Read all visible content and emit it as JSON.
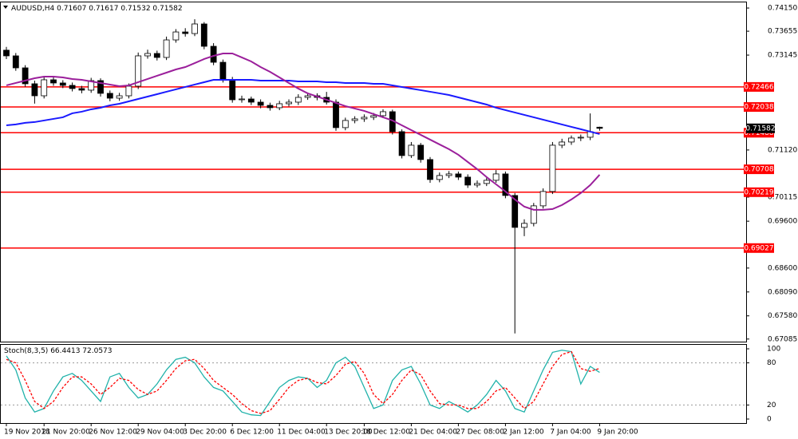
{
  "chart_data": [
    {
      "type": "candlestick",
      "title": "AUDUSD,H4",
      "categories": [
        "19 Nov 2018",
        null,
        null,
        null,
        "21 Nov 20:00",
        null,
        null,
        null,
        null,
        "26 Nov 12:00",
        null,
        null,
        null,
        null,
        "29 Nov 04:00",
        null,
        null,
        null,
        null,
        "3 Dec 20:00",
        null,
        null,
        null,
        null,
        "6 Dec 12:00",
        null,
        null,
        null,
        null,
        "11 Dec 04:00",
        null,
        null,
        null,
        null,
        "13 Dec 20:00",
        null,
        null,
        null,
        "18 Dec 12:00",
        null,
        null,
        null,
        null,
        "21 Dec 04:00",
        null,
        null,
        null,
        null,
        "27 Dec 08:00",
        null,
        null,
        null,
        null,
        "2 Jan 12:00",
        null,
        null,
        null,
        null,
        "7 Jan 04:00",
        null,
        null,
        null,
        null,
        "9 Jan 20:00"
      ],
      "open": [
        0.7325,
        0.73129,
        0.72873,
        0.72533,
        0.72277,
        0.72618,
        0.7255,
        0.72499,
        0.72431,
        0.72397,
        0.72601,
        0.72329,
        0.72226,
        0.72277,
        0.72482,
        0.73129,
        0.7318,
        0.73095,
        0.73469,
        0.73639,
        0.73605,
        0.7381,
        0.73333,
        0.72992,
        0.72618,
        0.72192,
        0.72209,
        0.72141,
        0.72073,
        0.72022,
        0.72107,
        0.72141,
        0.72243,
        0.72277,
        0.72243,
        0.72141,
        0.71597,
        0.7175,
        0.71784,
        0.71818,
        0.71852,
        0.71937,
        0.71511,
        0.71001,
        0.71222,
        0.70916,
        0.7049,
        0.70575,
        0.70609,
        0.70541,
        0.70371,
        0.70405,
        0.70473,
        0.70609,
        0.70149,
        0.69468,
        0.69554,
        0.69928,
        0.70235,
        0.71222,
        0.7129,
        0.71375,
        0.71392,
        0.71607
      ],
      "high": [
        0.7332,
        0.7319,
        0.7293,
        0.726,
        0.7268,
        0.7269,
        0.7261,
        0.7256,
        0.7249,
        0.7266,
        0.7265,
        0.7239,
        0.7234,
        0.7254,
        0.732,
        0.7326,
        0.7324,
        0.7354,
        0.737,
        0.7372,
        0.7391,
        0.7385,
        0.734,
        0.7305,
        0.7268,
        0.7228,
        0.7226,
        0.722,
        0.7213,
        0.7217,
        0.722,
        0.7231,
        0.7234,
        0.7233,
        0.7236,
        0.722,
        0.7181,
        0.7184,
        0.7188,
        0.7191,
        0.7199,
        0.7198,
        0.7156,
        0.7129,
        0.7127,
        0.7097,
        0.7064,
        0.7067,
        0.7066,
        0.706,
        0.7047,
        0.7053,
        0.7069,
        0.7066,
        0.702,
        0.6964,
        0.6999,
        0.703,
        0.7129,
        0.7136,
        0.7143,
        0.7145,
        0.719,
        0.71617
      ],
      "low": [
        0.7306,
        0.7281,
        0.7247,
        0.7211,
        0.7222,
        0.7249,
        0.7244,
        0.7237,
        0.7233,
        0.7234,
        0.7226,
        0.7216,
        0.7217,
        0.7222,
        0.7242,
        0.7307,
        0.7303,
        0.7304,
        0.7341,
        0.7354,
        0.7355,
        0.7327,
        0.7293,
        0.7256,
        0.7213,
        0.7213,
        0.7208,
        0.7201,
        0.7196,
        0.7197,
        0.7205,
        0.7208,
        0.7219,
        0.7218,
        0.7209,
        0.7153,
        0.7154,
        0.7169,
        0.7172,
        0.7176,
        0.718,
        0.7145,
        0.7094,
        0.7095,
        0.7085,
        0.7042,
        0.7043,
        0.7052,
        0.7048,
        0.7031,
        0.7032,
        0.7035,
        0.7042,
        0.7009,
        0.67204,
        0.6928,
        0.6949,
        0.6987,
        0.7018,
        0.7116,
        0.7123,
        0.7131,
        0.7133,
        0.71532
      ],
      "close": [
        0.73129,
        0.72873,
        0.72533,
        0.72277,
        0.72618,
        0.7255,
        0.72499,
        0.72431,
        0.72397,
        0.72601,
        0.72329,
        0.72226,
        0.72277,
        0.72482,
        0.73129,
        0.7318,
        0.73095,
        0.73469,
        0.73639,
        0.73605,
        0.7381,
        0.73333,
        0.72992,
        0.72618,
        0.72192,
        0.72209,
        0.72141,
        0.72073,
        0.72022,
        0.72107,
        0.72141,
        0.72243,
        0.72277,
        0.72243,
        0.72141,
        0.71597,
        0.7175,
        0.71784,
        0.71818,
        0.71852,
        0.71937,
        0.71511,
        0.71001,
        0.71222,
        0.70916,
        0.7049,
        0.70575,
        0.70609,
        0.70541,
        0.70371,
        0.70405,
        0.70473,
        0.70609,
        0.70149,
        0.69468,
        0.69554,
        0.69928,
        0.70235,
        0.71222,
        0.7129,
        0.71375,
        0.71392,
        0.71511,
        0.71582
      ],
      "up_color": "#ffffff",
      "down_color": "#000000",
      "series": [
        {
          "color": "#1a1aff",
          "values": [
            0.71647,
            0.71665,
            0.71699,
            0.71716,
            0.7175,
            0.71784,
            0.71818,
            0.71903,
            0.71937,
            0.71988,
            0.72022,
            0.72073,
            0.72107,
            0.72158,
            0.72209,
            0.7226,
            0.72311,
            0.72363,
            0.72414,
            0.72465,
            0.72516,
            0.72567,
            0.72618,
            0.72618,
            0.72618,
            0.72618,
            0.72618,
            0.72601,
            0.72601,
            0.72601,
            0.72601,
            0.72584,
            0.72584,
            0.72584,
            0.72567,
            0.72567,
            0.7255,
            0.7255,
            0.7255,
            0.72533,
            0.72533,
            0.72499,
            0.72465,
            0.72431,
            0.72397,
            0.72363,
            0.72329,
            0.72294,
            0.72243,
            0.72192,
            0.72141,
            0.7209,
            0.72022,
            0.71971,
            0.7192,
            0.71869,
            0.71818,
            0.71767,
            0.71716,
            0.71665,
            0.71614,
            0.71563,
            0.71511,
            0.7146
          ]
        },
        {
          "color": "#9b1f9b",
          "values": [
            0.72499,
            0.7255,
            0.72601,
            0.72652,
            0.72686,
            0.72686,
            0.72669,
            0.72635,
            0.72618,
            0.72584,
            0.7255,
            0.72516,
            0.72482,
            0.72499,
            0.72567,
            0.72635,
            0.72703,
            0.72771,
            0.72839,
            0.7289,
            0.72975,
            0.73061,
            0.73129,
            0.7318,
            0.7318,
            0.73095,
            0.7301,
            0.7289,
            0.72788,
            0.72669,
            0.7255,
            0.72431,
            0.72329,
            0.7226,
            0.72192,
            0.72124,
            0.72056,
            0.72005,
            0.71954,
            0.71886,
            0.71818,
            0.7175,
            0.71647,
            0.71545,
            0.71443,
            0.71341,
            0.71239,
            0.71137,
            0.71018,
            0.70864,
            0.70711,
            0.70541,
            0.70388,
            0.70235,
            0.70064,
            0.69911,
            0.69843,
            0.69843,
            0.6986,
            0.69945,
            0.70064,
            0.70201,
            0.70371,
            0.70592
          ]
        }
      ],
      "levels": [
        0.72466,
        0.72038,
        0.71488,
        0.70708,
        0.70219,
        0.69027
      ],
      "level_color": "#ff0000",
      "ylim": [
        0.6703,
        0.7427
      ],
      "yticks": [
        {
          "value": 0.7415,
          "label": "0.74150"
        },
        {
          "value": 0.73655,
          "label": "0.73655"
        },
        {
          "value": 0.73145,
          "label": "0.73145"
        },
        {
          "value": 0.7112,
          "label": "0.71120"
        },
        {
          "value": 0.70115,
          "label": "0.70115"
        },
        {
          "value": 0.696,
          "label": "0.69600"
        },
        {
          "value": 0.686,
          "label": "0.68600"
        },
        {
          "value": 0.6809,
          "label": "0.68090"
        },
        {
          "value": 0.6758,
          "label": "0.67580"
        },
        {
          "value": 0.67085,
          "label": "0.67085"
        }
      ],
      "grid": false
    },
    {
      "type": "line",
      "title": "Stoch(8,3,5)",
      "series": [
        {
          "color": "#20b2aa",
          "dashed": false,
          "values": [
            90,
            70,
            30,
            10,
            15,
            40,
            60,
            65,
            55,
            40,
            25,
            60,
            65,
            45,
            30,
            35,
            50,
            70,
            85,
            88,
            80,
            60,
            45,
            40,
            25,
            10,
            6,
            5,
            25,
            45,
            55,
            60,
            58,
            45,
            55,
            80,
            88,
            75,
            45,
            15,
            20,
            55,
            70,
            75,
            50,
            20,
            15,
            25,
            18,
            10,
            20,
            35,
            55,
            40,
            15,
            10,
            40,
            70,
            95,
            98,
            96,
            50,
            75,
            66.4413
          ]
        },
        {
          "color": "#ff0000",
          "dashed": true,
          "values": [
            85,
            80,
            55,
            25,
            15,
            25,
            45,
            60,
            60,
            50,
            35,
            45,
            58,
            55,
            42,
            35,
            40,
            55,
            72,
            83,
            85,
            72,
            55,
            45,
            35,
            22,
            12,
            8,
            12,
            28,
            45,
            55,
            58,
            52,
            50,
            62,
            78,
            82,
            65,
            35,
            22,
            35,
            55,
            70,
            63,
            40,
            22,
            20,
            20,
            15,
            15,
            25,
            40,
            45,
            30,
            15,
            25,
            50,
            75,
            92,
            96,
            72,
            68,
            72.0573
          ]
        }
      ],
      "levels": [
        80,
        20
      ],
      "ylim": [
        -5.7,
        105.7
      ],
      "yticks": [
        100,
        80,
        20,
        0
      ],
      "grid": false
    }
  ]
}
